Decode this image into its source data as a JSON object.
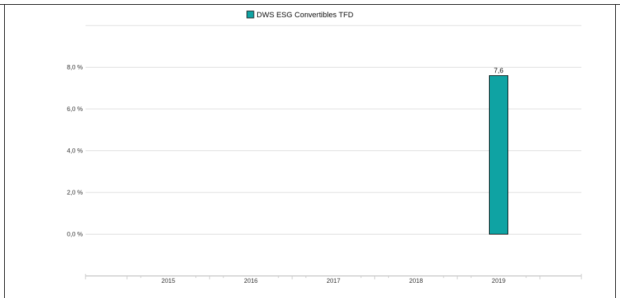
{
  "chart_data": {
    "type": "bar",
    "categories": [
      "2015",
      "2016",
      "2017",
      "2018",
      "2019"
    ],
    "series": [
      {
        "name": "DWS ESG Convertibles  TFD",
        "values": [
          null,
          null,
          null,
          null,
          7.6
        ],
        "data_labels": [
          "",
          "",
          "",
          "",
          "7,6"
        ],
        "color": "#0fa3a3"
      }
    ],
    "ylim": [
      -2.0,
      10.0
    ],
    "yticks": [
      0,
      2,
      4,
      6,
      8
    ],
    "ytick_labels": [
      "0,0 %",
      "2,0 %",
      "4,0 %",
      "6,0 %",
      "8,0 %"
    ],
    "grid": true,
    "legend": "top-center",
    "title": "",
    "xlabel": "",
    "ylabel": ""
  },
  "colors": {
    "grid": "#dcdcdc",
    "axis": "#c9c9c9",
    "text": "#333333",
    "bar_edge": "#111111"
  }
}
